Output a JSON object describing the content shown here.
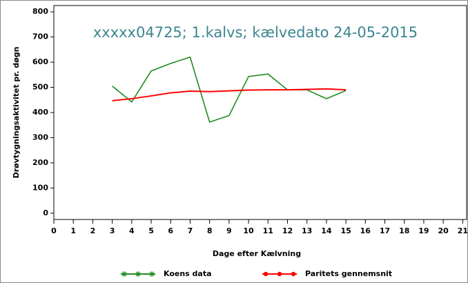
{
  "chart_data": {
    "type": "line",
    "title": "xxxxx04725; 1.kalvs; kælvedato 24-05-2015",
    "xlabel": "Dage efter Kælvning",
    "ylabel": "Drøvtygningsaktivitet pr. døgn",
    "x": [
      3,
      4,
      5,
      6,
      7,
      8,
      9,
      10,
      11,
      12,
      13,
      14,
      15
    ],
    "series": [
      {
        "name": "Koens data",
        "color": "#1e8a1e",
        "marker": "star",
        "values": [
          505,
          442,
          565,
          595,
          620,
          362,
          388,
          543,
          553,
          490,
          490,
          455,
          487
        ]
      },
      {
        "name": "Paritets gennemsnit",
        "color": "#ff0000",
        "marker": "dot",
        "values": [
          447,
          455,
          466,
          478,
          485,
          483,
          486,
          489,
          490,
          490,
          492,
          494,
          490
        ]
      }
    ],
    "xlim": [
      0,
      21.2
    ],
    "xticks": [
      0,
      1,
      2,
      3,
      4,
      5,
      6,
      7,
      8,
      9,
      10,
      11,
      12,
      13,
      14,
      15,
      16,
      17,
      18,
      19,
      20,
      21
    ],
    "ylim": [
      -25,
      825
    ],
    "yticks": [
      0,
      100,
      200,
      300,
      400,
      500,
      600,
      700,
      800
    ],
    "legend": "bottom"
  }
}
